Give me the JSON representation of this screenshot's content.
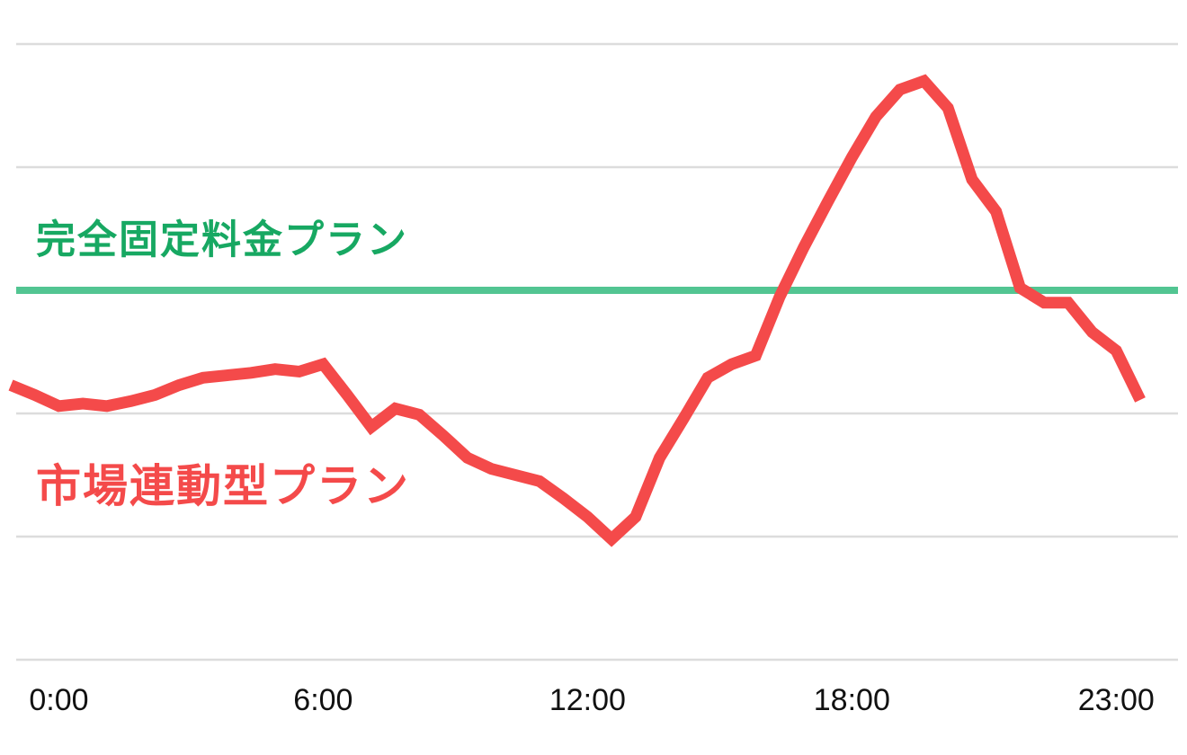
{
  "chart_data": {
    "type": "line",
    "x": [
      0,
      0.5,
      1,
      1.5,
      2,
      2.5,
      3,
      3.5,
      4,
      4.5,
      5,
      5.5,
      6,
      6.5,
      7,
      7.5,
      8,
      8.5,
      9,
      9.5,
      10,
      10.5,
      11,
      11.5,
      12,
      12.5,
      13,
      13.5,
      14,
      14.5,
      15,
      15.5,
      16,
      16.5,
      17,
      17.5,
      18,
      18.5,
      19,
      19.5,
      20,
      20.5,
      21,
      21.5,
      22,
      22.5,
      23,
      23.5
    ],
    "series": [
      {
        "name": "市場連動型プラン",
        "color": "#f44a4a",
        "values": [
          2.23,
          2.15,
          2.06,
          2.08,
          2.06,
          2.1,
          2.15,
          2.23,
          2.29,
          2.31,
          2.33,
          2.36,
          2.34,
          2.4,
          2.15,
          1.89,
          2.04,
          1.99,
          1.82,
          1.64,
          1.55,
          1.5,
          1.45,
          1.31,
          1.16,
          0.98,
          1.16,
          1.64,
          1.96,
          2.29,
          2.4,
          2.47,
          2.95,
          3.35,
          3.72,
          4.08,
          4.41,
          4.63,
          4.7,
          4.48,
          3.9,
          3.64,
          3.02,
          2.9,
          2.9,
          2.66,
          2.51,
          2.11
        ]
      }
    ],
    "hline": {
      "name": "完全固定料金プラン",
      "value": 3,
      "color": "#52c592"
    },
    "xlim": [
      0,
      23.5
    ],
    "xticks": [
      {
        "value": 1,
        "label": "0:00"
      },
      {
        "value": 6.5,
        "label": "6:00"
      },
      {
        "value": 12,
        "label": "12:00"
      },
      {
        "value": 17.5,
        "label": "18:00"
      },
      {
        "value": 23,
        "label": "23:00"
      }
    ],
    "ylim": [
      0,
      5
    ],
    "yticks": [
      0,
      1,
      2,
      3,
      4,
      5
    ],
    "grid": true
  }
}
